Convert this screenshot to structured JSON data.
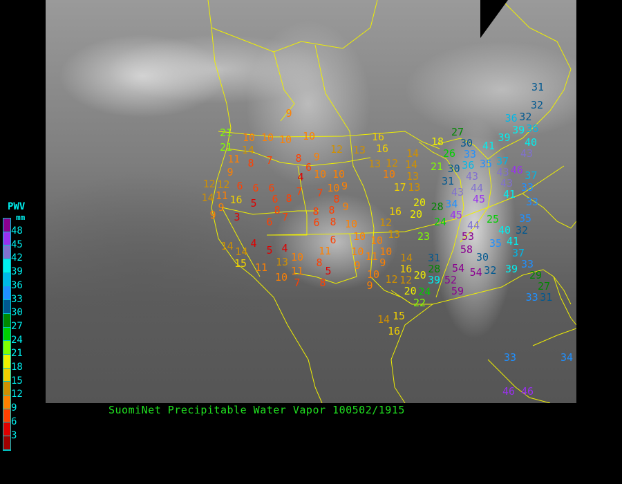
{
  "title": "SuomiNet Precipitable Water Vapor 100502/1915",
  "legend": {
    "title": "PWV",
    "unit": "mm",
    "labels": [
      "48",
      "45",
      "42",
      "39",
      "36",
      "33",
      "30",
      "27",
      "24",
      "21",
      "18",
      "15",
      "12",
      "9",
      "6",
      "3"
    ],
    "colors": [
      "#8a0090",
      "#9a30f0",
      "#8070d0",
      "#00f0f0",
      "#00b8e8",
      "#2090ff",
      "#005890",
      "#008800",
      "#00d000",
      "#80ff00",
      "#f0f000",
      "#f0d000",
      "#d09000",
      "#ff8000",
      "#ff4000",
      "#e00000",
      "#a00000"
    ]
  },
  "map": {
    "border_color": "#f0f000"
  },
  "stations": [
    9,
    10,
    12,
    13,
    16,
    16,
    21,
    21,
    14,
    10,
    10,
    10,
    11,
    8,
    7,
    8,
    9,
    6,
    4,
    10,
    10,
    13,
    12,
    14,
    10,
    9,
    12,
    12,
    6,
    6,
    6,
    7,
    7,
    10,
    9,
    13,
    17,
    14,
    11,
    16,
    9,
    5,
    6,
    8,
    8,
    9,
    3,
    8,
    7,
    6,
    8,
    8,
    9,
    6,
    8,
    10,
    16,
    12,
    13,
    20,
    6,
    10,
    10,
    14,
    4,
    5,
    4,
    14,
    15,
    11,
    13,
    10,
    11,
    8,
    10,
    11,
    10,
    9,
    14,
    10,
    11,
    7,
    5,
    8,
    9,
    10,
    9,
    12,
    16,
    20,
    31,
    32,
    36,
    32,
    39,
    36,
    39,
    40,
    18,
    27,
    26,
    30,
    33,
    41,
    43,
    21,
    30,
    36,
    35,
    37,
    43,
    43,
    46,
    14,
    13,
    31,
    44,
    45,
    43,
    41,
    37,
    33,
    43,
    34,
    45,
    20,
    28,
    33,
    24,
    25,
    35,
    23,
    44,
    53,
    40,
    32,
    58,
    35,
    41,
    30,
    37,
    31,
    28,
    39,
    54,
    54,
    32,
    39,
    33,
    29,
    27,
    52,
    59,
    20,
    24,
    22,
    12,
    33,
    31,
    14,
    16,
    15,
    33,
    34,
    46,
    46
  ]
}
